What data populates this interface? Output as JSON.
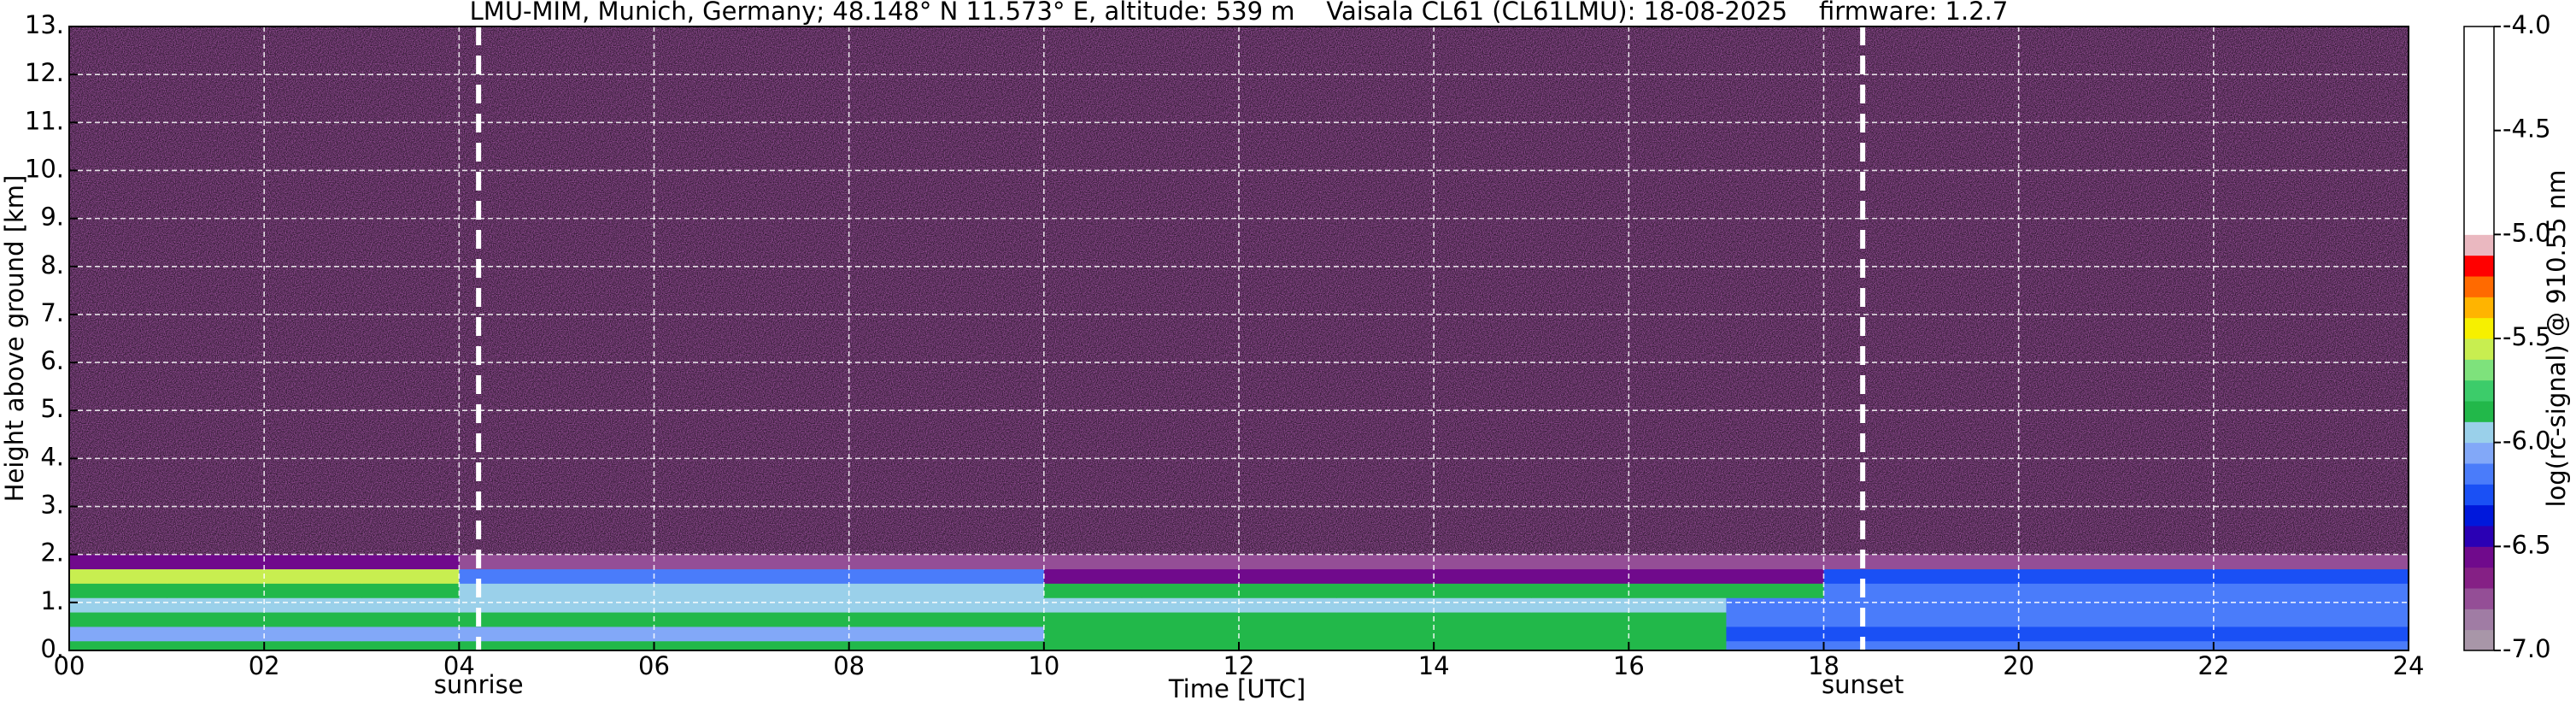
{
  "chart_data": {
    "type": "heatmap",
    "title": "LMU-MIM, Munich, Germany; 48.148° N 11.573° E, altitude: 539 m    Vaisala CL61 (CL61LMU): 18-08-2025    firmware: 1.2.7",
    "x_label": "Time [UTC]",
    "y_label": "Height above ground [km]",
    "x_bins": [
      0,
      1,
      2,
      3,
      4,
      5,
      6,
      7,
      8,
      9,
      10,
      11,
      12,
      13,
      14,
      15,
      16,
      17,
      18,
      19,
      20,
      21,
      22,
      23,
      24
    ],
    "y_bins": [
      0,
      0.2,
      0.5,
      0.8,
      1.1,
      1.4,
      1.7,
      2.0,
      13
    ],
    "values": [
      [
        -5.9,
        -5.9,
        -5.9,
        -5.9,
        -5.9,
        -5.9,
        -5.9,
        -5.9,
        -5.9,
        -5.9,
        -5.85,
        -5.85,
        -5.85,
        -5.85,
        -5.85,
        -5.85,
        -5.85,
        -6.2,
        -6.2,
        -6.2,
        -6.2,
        -6.2,
        -6.2,
        -6.2
      ],
      [
        -6.1,
        -6.1,
        -6.1,
        -6.1,
        -6.1,
        -6.1,
        -6.1,
        -6.1,
        -6.1,
        -6.1,
        -5.85,
        -5.85,
        -5.85,
        -5.85,
        -5.85,
        -5.85,
        -5.85,
        -6.25,
        -6.25,
        -6.25,
        -6.25,
        -6.25,
        -6.25,
        -6.25
      ],
      [
        -5.9,
        -5.9,
        -5.9,
        -5.9,
        -5.9,
        -5.9,
        -5.9,
        -5.9,
        -5.9,
        -5.9,
        -5.9,
        -5.9,
        -5.9,
        -5.9,
        -5.9,
        -5.9,
        -5.9,
        -6.2,
        -6.2,
        -6.2,
        -6.2,
        -6.2,
        -6.2,
        -6.2
      ],
      [
        -5.95,
        -5.95,
        -5.95,
        -5.95,
        -5.95,
        -5.95,
        -5.95,
        -5.95,
        -5.95,
        -5.95,
        -5.95,
        -5.95,
        -5.95,
        -5.95,
        -5.95,
        -5.95,
        -5.95,
        -6.15,
        -6.15,
        -6.15,
        -6.15,
        -6.15,
        -6.15,
        -6.15
      ],
      [
        -5.85,
        -5.85,
        -5.85,
        -5.85,
        -6.0,
        -6.0,
        -6.0,
        -6.0,
        -6.0,
        -6.0,
        -5.9,
        -5.9,
        -5.9,
        -5.9,
        -5.9,
        -5.9,
        -5.9,
        -5.9,
        -6.2,
        -6.2,
        -6.2,
        -6.2,
        -6.2,
        -6.2
      ],
      [
        -5.6,
        -5.6,
        -5.6,
        -5.6,
        -6.2,
        -6.2,
        -6.2,
        -6.2,
        -6.2,
        -6.2,
        -6.6,
        -6.6,
        -6.6,
        -6.6,
        -6.6,
        -6.6,
        -6.6,
        -6.6,
        -6.25,
        -6.25,
        -6.25,
        -6.25,
        -6.25,
        -6.25
      ],
      [
        -6.6,
        -6.6,
        -6.6,
        -6.6,
        -6.75,
        -6.75,
        -6.75,
        -6.75,
        -6.75,
        -6.75,
        -6.75,
        -6.75,
        -6.75,
        -6.75,
        -6.75,
        -6.75,
        -6.75,
        -6.75,
        -6.75,
        -6.75,
        -6.75,
        -6.75,
        -6.75,
        -6.75
      ],
      [
        -6.75,
        -6.75,
        -6.75,
        -6.75,
        -6.75,
        -6.75,
        -6.75,
        -6.75,
        -6.75,
        -6.75,
        -6.75,
        -6.75,
        -6.75,
        -6.75,
        -6.75,
        -6.75,
        -6.75,
        -6.75,
        -6.75,
        -6.75,
        -6.75,
        -6.75,
        -6.75,
        -6.75
      ]
    ],
    "xlim": [
      0,
      24
    ],
    "xticks": [
      {
        "value": 0,
        "label": "00"
      },
      {
        "value": 2,
        "label": "02"
      },
      {
        "value": 4,
        "label": "04"
      },
      {
        "value": 6,
        "label": "06"
      },
      {
        "value": 8,
        "label": "08"
      },
      10,
      12,
      14,
      16,
      18,
      20,
      22,
      24
    ],
    "ylim": [
      0,
      13
    ],
    "yticks": [
      {
        "value": 0,
        "label": "0."
      },
      {
        "value": 1,
        "label": "1."
      },
      {
        "value": 2,
        "label": "2."
      },
      {
        "value": 3,
        "label": "3."
      },
      {
        "value": 4,
        "label": "4."
      },
      {
        "value": 5,
        "label": "5."
      },
      {
        "value": 6,
        "label": "6."
      },
      {
        "value": 7,
        "label": "7."
      },
      {
        "value": 8,
        "label": "8."
      },
      {
        "value": 9,
        "label": "9."
      },
      {
        "value": 10,
        "label": "10."
      },
      {
        "value": 11,
        "label": "11."
      },
      {
        "value": 12,
        "label": "12."
      },
      {
        "value": 13,
        "label": "13."
      }
    ],
    "grid": true,
    "annotations": [
      {
        "text": "sunrise",
        "x": 4.2
      },
      {
        "text": "sunset",
        "x": 18.4
      }
    ],
    "colorbar": {
      "label": "log(rc-signal) @ 910.55 nm",
      "lim": [
        -7,
        -4
      ],
      "ticks": [
        {
          "value": -4,
          "label": "-4.0"
        },
        -4.5,
        {
          "value": -5,
          "label": "-5.0"
        },
        -5.5,
        {
          "value": -6,
          "label": "-6.0"
        },
        -6.5,
        {
          "value": -7,
          "label": "-7.0"
        }
      ],
      "levels": [
        -7,
        -6.9,
        -6.8,
        -6.7,
        -6.6,
        -6.5,
        -6.4,
        -6.3,
        -6.2,
        -6.1,
        -6,
        -5.9,
        -5.8,
        -5.7,
        -5.6,
        -5.5,
        -5.4,
        -5.3,
        -5.2,
        -5.1,
        -5,
        -4
      ],
      "colors": [
        "#a896a8",
        "#a07ca4",
        "#944e96",
        "#852085",
        "#700a8c",
        "#2a00b4",
        "#0018dc",
        "#1a50f5",
        "#4a7cfa",
        "#82a8f8",
        "#9ad0ea",
        "#22b84a",
        "#3ccc6a",
        "#7ee27c",
        "#c8ee50",
        "#f6f000",
        "#ffb400",
        "#ff6a00",
        "#ff0000",
        "#eab8c0",
        "#ffffff"
      ]
    }
  }
}
